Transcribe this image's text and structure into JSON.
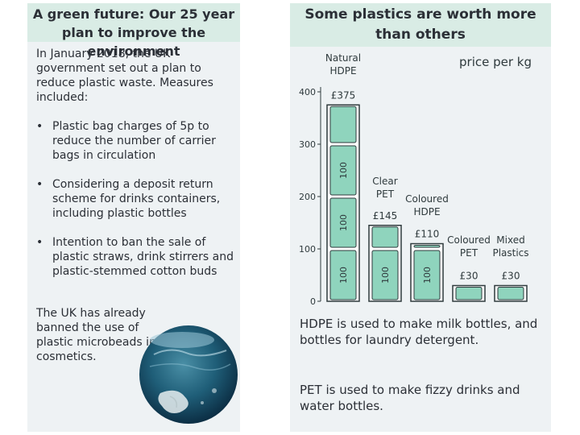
{
  "left": {
    "title": "A green future: Our 25 year plan to improve the environment",
    "intro": "In January 2018, the UK government set out a plan to reduce plastic waste. Measures included:",
    "bullets": [
      "Plastic bag charges of 5p to reduce the number of carrier bags in circulation",
      "Considering a deposit return scheme for drinks containers, including plastic bottles",
      "Intention to ban the sale of plastic straws, drink stirrers and plastic-stemmed cotton buds"
    ],
    "bullet_symbol": "•",
    "microbeads": "The UK has already banned the use of plastic microbeads in cosmetics."
  },
  "right": {
    "title": "Some plastics are worth more than others",
    "note_hdpe": "HDPE is used to make milk bottles, and bottles for laundry detergent.",
    "note_pet": "PET is used to make fizzy drinks and water bottles."
  },
  "chart_data": {
    "type": "bar",
    "title": "Some plastics are worth more than others",
    "unit_label": "price per kg",
    "categories": [
      [
        "Natural",
        "HDPE"
      ],
      [
        "Clear",
        "PET"
      ],
      [
        "Coloured",
        "HDPE"
      ],
      [
        "Coloured",
        "PET"
      ],
      [
        "Mixed",
        "Plastics"
      ]
    ],
    "values": [
      375,
      145,
      110,
      30,
      30
    ],
    "value_labels": [
      "£375",
      "£145",
      "£110",
      "£30",
      "£30"
    ],
    "ylim": [
      0,
      400
    ],
    "yticks": [
      0,
      100,
      200,
      300,
      400
    ],
    "note_label": "100",
    "note_value": 100,
    "colors": {
      "note": "#8fd4bd",
      "note_border": "#2f3a3d",
      "bar_outline": "#2f3a3d",
      "note_text": "#2f3a3d"
    }
  }
}
